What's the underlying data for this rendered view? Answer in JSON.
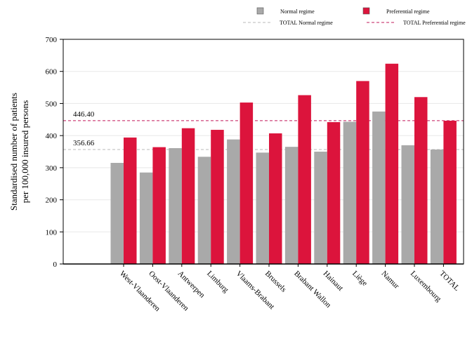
{
  "chart_data": {
    "type": "bar",
    "ylabel_lines": [
      "Standardised number of patients",
      "per 100,000 insured persons"
    ],
    "ylim": [
      0,
      700
    ],
    "yticks": [
      0,
      100,
      200,
      300,
      400,
      500,
      600,
      700
    ],
    "grid": true,
    "legend_position": "top-right",
    "categories": [
      "West-Vlaanderen",
      "Oost-Vlaanderen",
      "Antwerpen",
      "Limburg",
      "Vlaams-Brabant",
      "Brussels",
      "Brabant Wallon",
      "Hainaut",
      "Liège",
      "Namur",
      "Luxembourg",
      "TOTAL"
    ],
    "series": [
      {
        "name": "Normal regime",
        "color": "#a9a9a9",
        "values": [
          315,
          285,
          361,
          334,
          388,
          347,
          365,
          350,
          443,
          475,
          370,
          356.66
        ]
      },
      {
        "name": "Preferential regime",
        "color": "#dc143c",
        "values": [
          394,
          364,
          423,
          418,
          503,
          407,
          526,
          442,
          570,
          624,
          520,
          446.4
        ]
      }
    ],
    "reference_lines": [
      {
        "name": "TOTAL Normal regime",
        "value": 356.66,
        "label": "356.66",
        "color": "#b8b8b8"
      },
      {
        "name": "TOTAL Preferential regime",
        "value": 446.4,
        "label": "446.40",
        "color": "#c2185b"
      }
    ]
  }
}
